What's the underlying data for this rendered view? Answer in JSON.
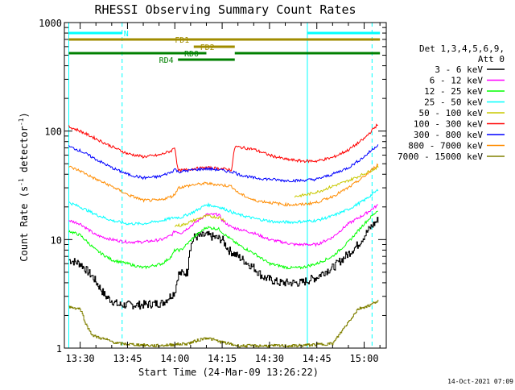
{
  "chart_data": {
    "type": "line",
    "title": "RHESSI Observing Summary Count Rates",
    "xlabel": "Start Time (24-Mar-09 13:26:22)",
    "ylabel_main": "Count Rate (s",
    "ylabel_sup1": "-1",
    "ylabel_mid": " detector",
    "ylabel_sup2": "-1",
    "ylabel_end": ")",
    "y_scale": "log",
    "ylim": [
      1,
      1000
    ],
    "xlim_minutes": [
      -2,
      67
    ],
    "x_ticks": [
      {
        "t": 0,
        "label": "13:30"
      },
      {
        "t": 15,
        "label": "13:45"
      },
      {
        "t": 30,
        "label": "14:00"
      },
      {
        "t": 45,
        "label": "14:15"
      },
      {
        "t": 60,
        "label": "14:30"
      },
      {
        "t": 75,
        "label": "14:45"
      },
      {
        "t": 90,
        "label": "15:00"
      }
    ],
    "y_ticks": [
      {
        "v": 1,
        "label": "1"
      },
      {
        "v": 10,
        "label": "10"
      },
      {
        "v": 100,
        "label": "100"
      },
      {
        "v": 1000,
        "label": "1000"
      }
    ],
    "legend": {
      "header1": "Det 1,3,4,5,6,9,",
      "header2": "Att 0",
      "position": "right"
    },
    "series": [
      {
        "name": "3 - 6 keV",
        "color": "#000000",
        "points": [
          [
            -3.6,
            6.5
          ],
          [
            0,
            6
          ],
          [
            4,
            4.5
          ],
          [
            8,
            3
          ],
          [
            12,
            2.5
          ],
          [
            15,
            2.5
          ],
          [
            19,
            2.5
          ],
          [
            26,
            2.6
          ],
          [
            30,
            3.3
          ],
          [
            31,
            4.8
          ],
          [
            34,
            5
          ],
          [
            34.5,
            8
          ],
          [
            36,
            10.5
          ],
          [
            40,
            11
          ],
          [
            45,
            10
          ],
          [
            47,
            8
          ],
          [
            50,
            7
          ],
          [
            55,
            5.5
          ],
          [
            58,
            4.5
          ],
          [
            63,
            4
          ],
          [
            70,
            4
          ],
          [
            75,
            4.5
          ],
          [
            77,
            5
          ],
          [
            80,
            5.5
          ],
          [
            84,
            7
          ],
          [
            88,
            9
          ],
          [
            92,
            13
          ],
          [
            94.6,
            15.5
          ]
        ]
      },
      {
        "name": "6 - 12 keV",
        "color": "#ff00ff",
        "points": [
          [
            -3.6,
            15
          ],
          [
            0,
            14
          ],
          [
            5,
            11
          ],
          [
            10,
            10
          ],
          [
            15,
            9.5
          ],
          [
            20,
            9.5
          ],
          [
            26,
            10
          ],
          [
            29,
            11
          ],
          [
            30,
            12
          ],
          [
            32,
            11.5
          ],
          [
            36,
            14
          ],
          [
            40,
            17
          ],
          [
            44,
            17
          ],
          [
            45,
            15
          ],
          [
            48,
            13
          ],
          [
            55,
            11.5
          ],
          [
            60,
            10
          ],
          [
            68,
            9
          ],
          [
            75,
            9
          ],
          [
            80,
            10.5
          ],
          [
            85,
            14
          ],
          [
            90,
            17
          ],
          [
            94.6,
            21
          ]
        ]
      },
      {
        "name": "12 - 25 keV",
        "color": "#00ff00",
        "points": [
          [
            -3.6,
            12
          ],
          [
            0,
            11
          ],
          [
            5,
            8
          ],
          [
            10,
            6.5
          ],
          [
            15,
            6
          ],
          [
            20,
            5.5
          ],
          [
            26,
            6
          ],
          [
            29,
            7
          ],
          [
            30,
            8
          ],
          [
            32,
            8
          ],
          [
            36,
            10.5
          ],
          [
            40,
            13
          ],
          [
            44,
            12.5
          ],
          [
            46,
            11
          ],
          [
            50,
            9
          ],
          [
            55,
            7.5
          ],
          [
            60,
            6
          ],
          [
            66,
            5.5
          ],
          [
            70,
            5.5
          ],
          [
            75,
            6
          ],
          [
            80,
            7
          ],
          [
            85,
            9.5
          ],
          [
            90,
            14
          ],
          [
            94.6,
            19
          ]
        ]
      },
      {
        "name": "25 - 50 keV",
        "color": "#00ffff",
        "points": [
          [
            -3.6,
            22
          ],
          [
            0,
            20
          ],
          [
            5,
            17
          ],
          [
            10,
            15
          ],
          [
            15,
            14
          ],
          [
            20,
            14
          ],
          [
            26,
            15
          ],
          [
            30,
            16
          ],
          [
            32,
            16
          ],
          [
            36,
            18
          ],
          [
            40,
            21
          ],
          [
            44,
            20
          ],
          [
            46,
            19
          ],
          [
            50,
            17
          ],
          [
            56,
            15.5
          ],
          [
            62,
            14.5
          ],
          [
            68,
            14.5
          ],
          [
            75,
            15
          ],
          [
            80,
            16.5
          ],
          [
            85,
            19
          ],
          [
            90,
            23
          ],
          [
            94.6,
            29
          ]
        ]
      },
      {
        "name": "50 - 100 keV",
        "color": "#c8c800",
        "points": [
          [
            30,
            13.5
          ],
          [
            32,
            13.5
          ],
          [
            36,
            15
          ],
          [
            40,
            16.5
          ],
          [
            44,
            16
          ],
          [
            46,
            15
          ]
        ]
      },
      {
        "name": "50 - 100 keV late",
        "color": "#c8c800",
        "points": [
          [
            68,
            25
          ],
          [
            72,
            26
          ],
          [
            76,
            28
          ],
          [
            80,
            31
          ],
          [
            84,
            34
          ],
          [
            88,
            38
          ],
          [
            92,
            43
          ],
          [
            94.6,
            47
          ]
        ]
      },
      {
        "name": "100 - 300 keV",
        "color": "#ff0000",
        "points": [
          [
            -3.6,
            110
          ],
          [
            0,
            100
          ],
          [
            5,
            85
          ],
          [
            10,
            72
          ],
          [
            15,
            62
          ],
          [
            20,
            58
          ],
          [
            25,
            60
          ],
          [
            29,
            66
          ],
          [
            30,
            72
          ],
          [
            31,
            43
          ],
          [
            36,
            45
          ],
          [
            40,
            46
          ],
          [
            45,
            45
          ],
          [
            48,
            44
          ],
          [
            49,
            72
          ],
          [
            55,
            68
          ],
          [
            60,
            60
          ],
          [
            65,
            55
          ],
          [
            70,
            53
          ],
          [
            75,
            53
          ],
          [
            80,
            57
          ],
          [
            85,
            67
          ],
          [
            90,
            85
          ],
          [
            94.6,
            118
          ]
        ]
      },
      {
        "name": "300 - 800 keV",
        "color": "#0000ff",
        "points": [
          [
            -3.6,
            72
          ],
          [
            0,
            66
          ],
          [
            5,
            55
          ],
          [
            10,
            46
          ],
          [
            15,
            40
          ],
          [
            20,
            37
          ],
          [
            25,
            38
          ],
          [
            29,
            42
          ],
          [
            30,
            45
          ],
          [
            31,
            42
          ],
          [
            36,
            44
          ],
          [
            40,
            45
          ],
          [
            44,
            44
          ],
          [
            48,
            42
          ],
          [
            49,
            42
          ],
          [
            50,
            40
          ],
          [
            55,
            37
          ],
          [
            60,
            36
          ],
          [
            65,
            35
          ],
          [
            70,
            35
          ],
          [
            75,
            36
          ],
          [
            80,
            40
          ],
          [
            85,
            46
          ],
          [
            90,
            58
          ],
          [
            94.6,
            76
          ]
        ]
      },
      {
        "name": "800 - 7000 keV",
        "color": "#ff8c00",
        "points": [
          [
            -3.6,
            47
          ],
          [
            0,
            43
          ],
          [
            5,
            36
          ],
          [
            10,
            31
          ],
          [
            15,
            26
          ],
          [
            20,
            23
          ],
          [
            25,
            23
          ],
          [
            29,
            25
          ],
          [
            30,
            26
          ],
          [
            31,
            30
          ],
          [
            36,
            32
          ],
          [
            40,
            33
          ],
          [
            44,
            32
          ],
          [
            48,
            31
          ],
          [
            49,
            29
          ],
          [
            50,
            27
          ],
          [
            55,
            23
          ],
          [
            60,
            22
          ],
          [
            65,
            21
          ],
          [
            70,
            21
          ],
          [
            75,
            22
          ],
          [
            80,
            25
          ],
          [
            85,
            30
          ],
          [
            90,
            38
          ],
          [
            94.6,
            50
          ]
        ]
      },
      {
        "name": "7000 - 15000 keV",
        "color": "#808000",
        "points": [
          [
            -3.6,
            2.4
          ],
          [
            0,
            2.3
          ],
          [
            2,
            1.6
          ],
          [
            4,
            1.3
          ],
          [
            8,
            1.2
          ],
          [
            12,
            1.1
          ],
          [
            24,
            1.05
          ],
          [
            34,
            1.1
          ],
          [
            40,
            1.25
          ],
          [
            44,
            1.15
          ],
          [
            50,
            1.05
          ],
          [
            68,
            1.05
          ],
          [
            80,
            1.1
          ],
          [
            84,
            1.6
          ],
          [
            88,
            2.3
          ],
          [
            92,
            2.5
          ],
          [
            94.6,
            2.8
          ]
        ]
      }
    ],
    "legend_entries": [
      {
        "name": "3 - 6 keV",
        "color": "#000000"
      },
      {
        "name": "6 - 12 keV",
        "color": "#ff00ff"
      },
      {
        "name": "12 - 25 keV",
        "color": "#00ff00"
      },
      {
        "name": "25 - 50 keV",
        "color": "#00ffff"
      },
      {
        "name": "50 - 100 keV",
        "color": "#c8c800"
      },
      {
        "name": "100 - 300 keV",
        "color": "#ff0000"
      },
      {
        "name": "300 - 800 keV",
        "color": "#0000ff"
      },
      {
        "name": "800 - 7000 keV",
        "color": "#ff8c00"
      },
      {
        "name": "7000 - 15000 keV",
        "color": "#808000"
      }
    ],
    "vertical_lines": [
      {
        "t": -3.6,
        "style": "solid",
        "color": "#00ffff"
      },
      {
        "t": 13.3,
        "style": "dashed",
        "color": "#00ffff"
      },
      {
        "t": 72.0,
        "style": "solid",
        "color": "#00ffff"
      },
      {
        "t": 92.5,
        "style": "dashed",
        "color": "#00ffff"
      }
    ],
    "flag_bars": [
      {
        "label": "N",
        "color": "#00ffff",
        "t0": -3.6,
        "t1": 13.3,
        "t1b_from": 72.0,
        "t1b_to": 95,
        "label_t": 13.8
      },
      {
        "label": "FD1",
        "color": "#a08c00",
        "t0": -3.6,
        "t1": 95,
        "label_t": 30
      },
      {
        "label": "FD2",
        "color": "#a08c00",
        "t0": 36,
        "t1": 49,
        "label_t": 38
      },
      {
        "label": "RD0",
        "color": "#008000",
        "t0": -3.6,
        "t1": 95,
        "label_t": 33,
        "gap_from": 40,
        "gap_to": 49
      },
      {
        "label": "RD4",
        "color": "#008000",
        "t0": 31,
        "t1": 49,
        "label_t": 25
      }
    ]
  },
  "footer": {
    "date_stamp": "14-Oct-2021 07:09"
  }
}
